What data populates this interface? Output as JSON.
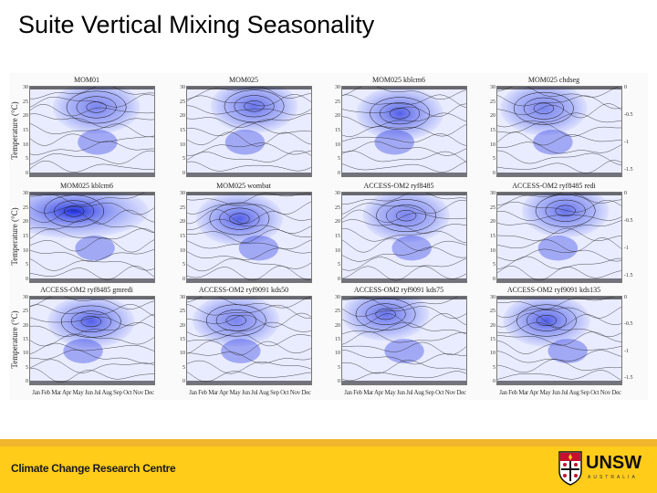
{
  "slide": {
    "title": "Suite Vertical Mixing Seasonality"
  },
  "figure": {
    "ylabel": "Temperature (°C)",
    "yticks": [
      "30",
      "25",
      "20",
      "15",
      "10",
      "5",
      "0"
    ],
    "colorbar_ticks": [
      "0",
      "-0.5",
      "-1",
      "-1.5"
    ],
    "months": "Jan Feb Mar Apr May Jun Jul Aug Sep Oct Nov Dec",
    "panels": [
      [
        "MOM01",
        "MOM025",
        "MOM025 kblcm6",
        "MOM025 chdseg"
      ],
      [
        "MOM025 kblcm6",
        "MOM025 wombat",
        "ACCESS-OM2 ryf8485",
        "ACCESS-OM2 ryf8485 redi"
      ],
      [
        "ACCESS-OM2 ryf8485 gmredi",
        "ACCESS-OM2 ryf9091 kds50",
        "ACCESS-OM2 ryf9091 kds75",
        "ACCESS-OM2 ryf9091 kds135"
      ]
    ]
  },
  "footer": {
    "org": "Climate Change Research Centre",
    "logo_text": "UNSW",
    "logo_sub": "AUSTRALIA"
  },
  "colors": {
    "footer_bar": "#ffcc1a",
    "footer_stripe": "#f2b52e",
    "field_deep": "#1f2fe0",
    "field_light": "#e9ecff"
  }
}
